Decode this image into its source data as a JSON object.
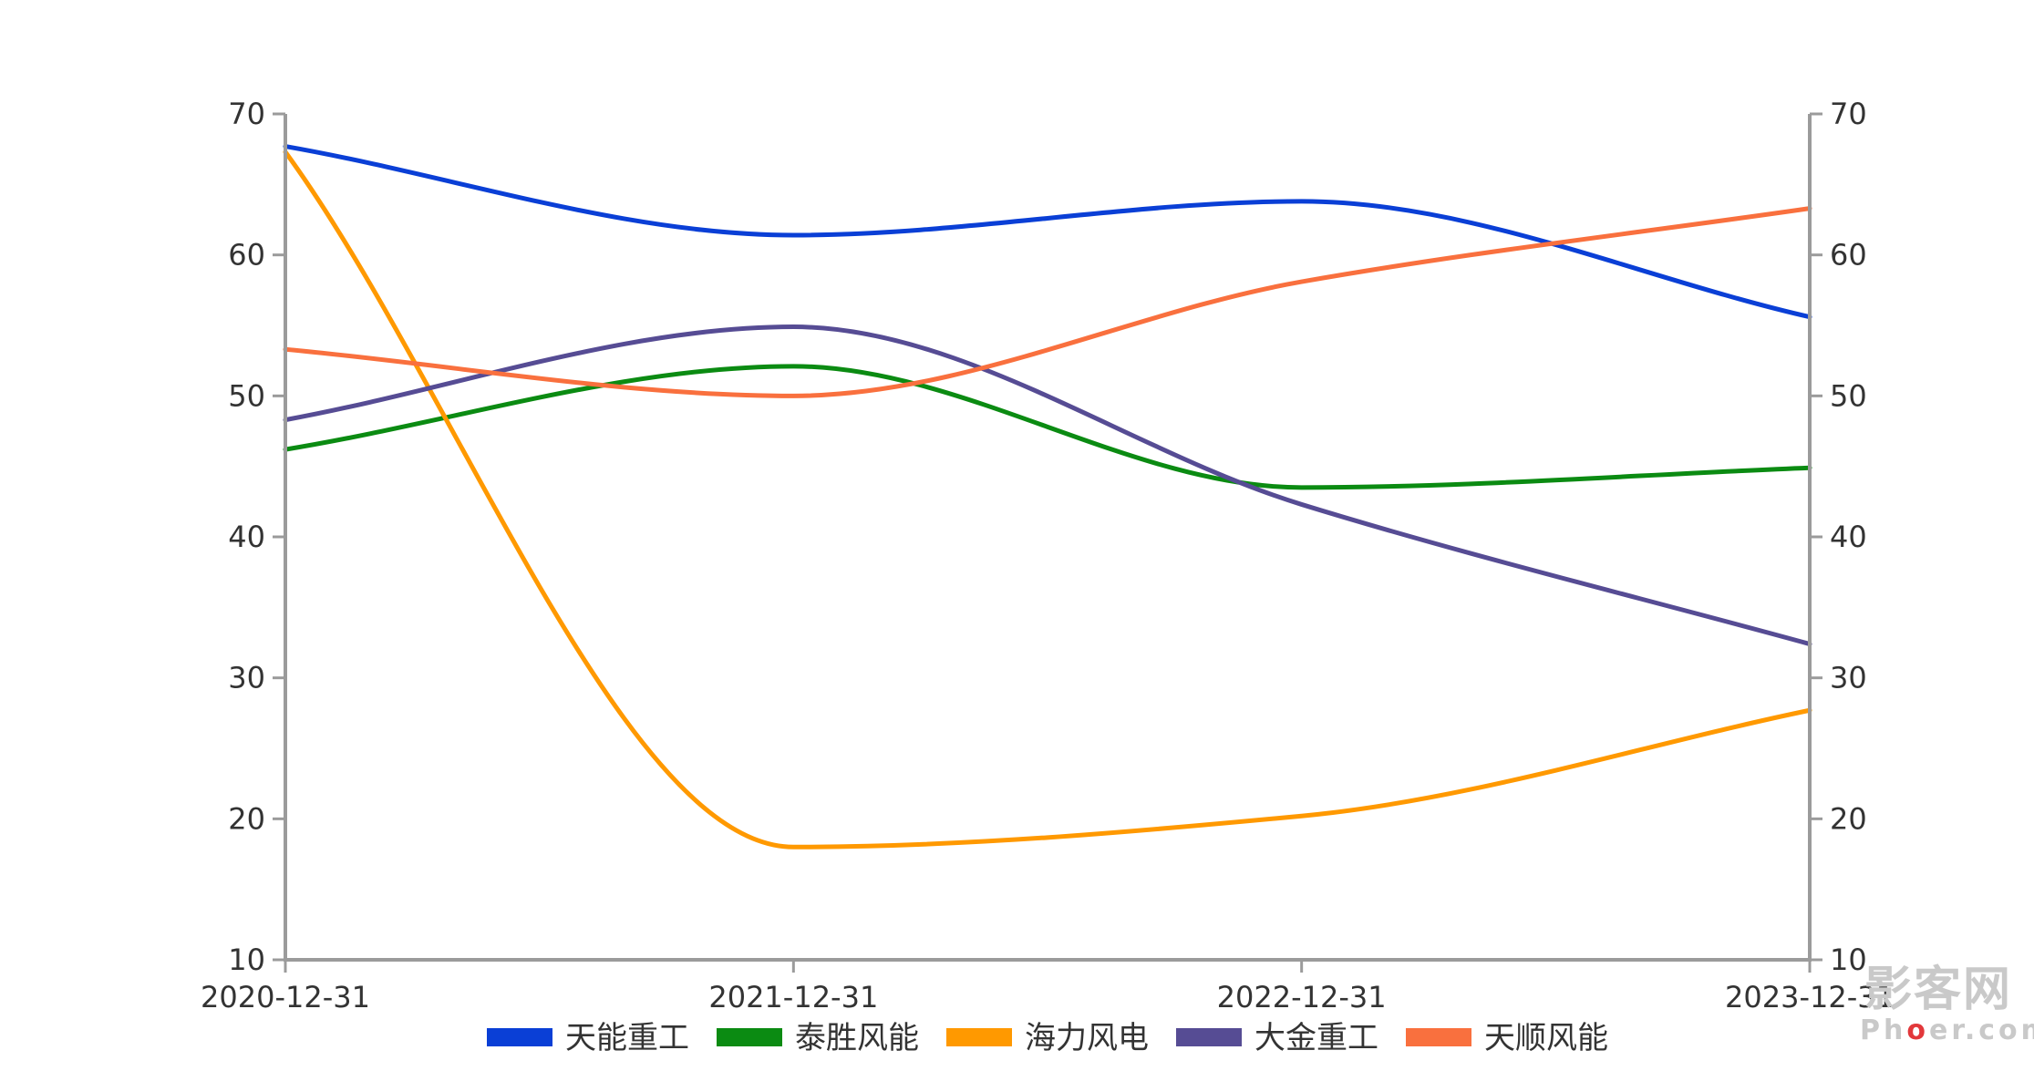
{
  "chart_data": {
    "type": "line",
    "title": "",
    "xlabel": "",
    "ylabel": "",
    "categories": [
      "2020-12-31",
      "2021-12-31",
      "2022-12-31",
      "2023-12-31"
    ],
    "ylim": [
      10,
      70
    ],
    "yticks": [
      10,
      20,
      30,
      40,
      50,
      60,
      70
    ],
    "dual_y_axis": true,
    "smooth": true,
    "grid": false,
    "legend_position": "bottom-center",
    "series": [
      {
        "name": "天能重工",
        "color": "#0a3fd6",
        "values": [
          67.7,
          61.4,
          63.8,
          55.6
        ]
      },
      {
        "name": "泰胜风能",
        "color": "#0b8b12",
        "values": [
          46.2,
          52.1,
          43.5,
          44.9
        ]
      },
      {
        "name": "海力风电",
        "color": "#ff9900",
        "values": [
          67.3,
          18.0,
          20.2,
          27.7
        ]
      },
      {
        "name": "大金重工",
        "color": "#564c94",
        "values": [
          48.3,
          54.9,
          42.3,
          32.4
        ]
      },
      {
        "name": "天顺风能",
        "color": "#f9703e",
        "values": [
          53.3,
          50.0,
          58.1,
          63.3
        ]
      }
    ]
  },
  "watermark": {
    "main": "影客网",
    "sub_prefix": "Ph",
    "sub_mid": "o",
    "sub_suffix": "er.com"
  }
}
